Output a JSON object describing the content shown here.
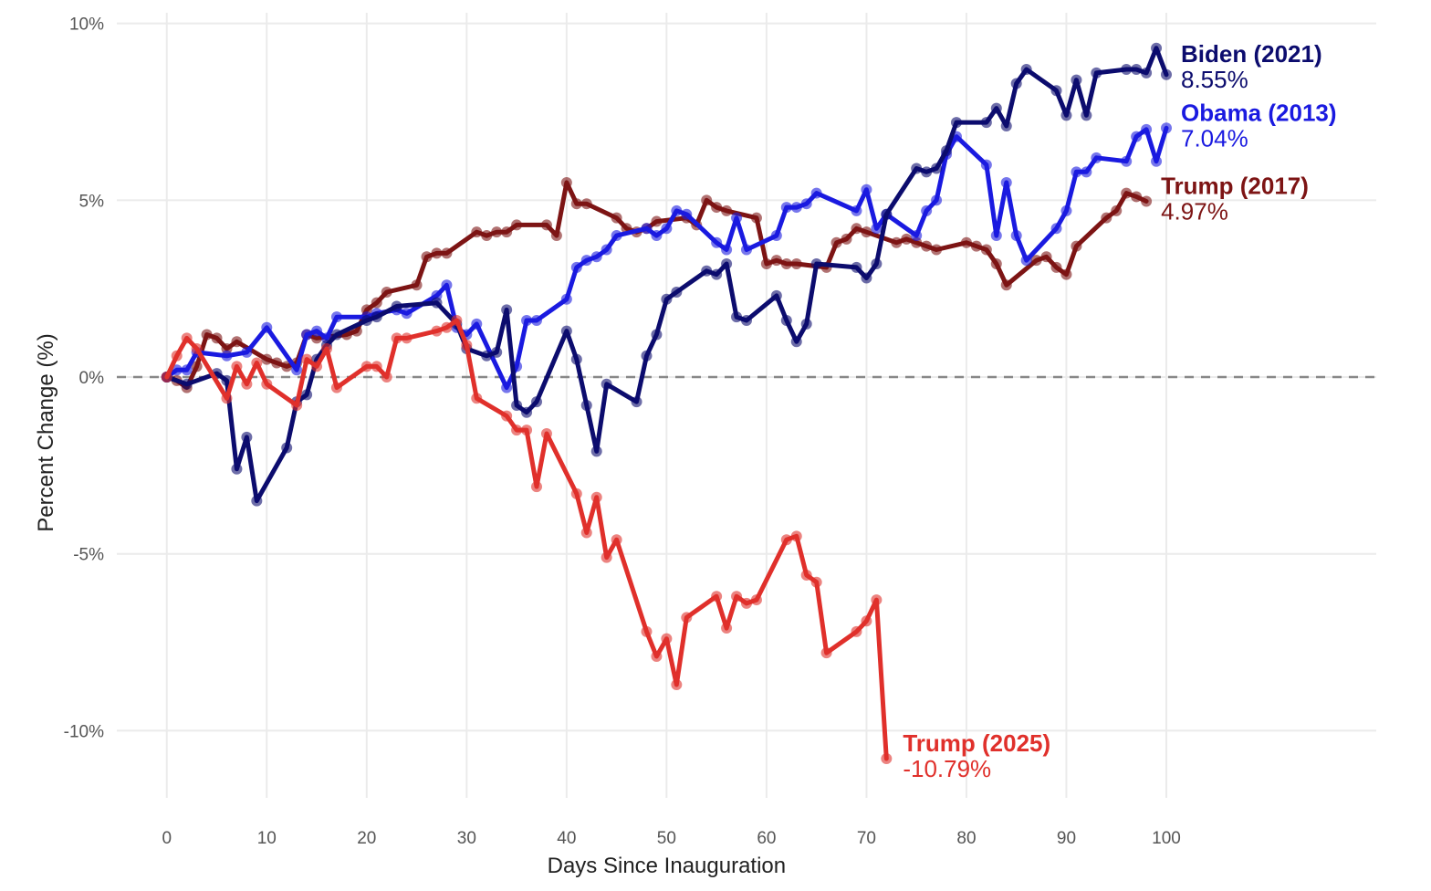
{
  "chart_data": {
    "type": "line",
    "title": "",
    "xlabel": "Days Since Inauguration",
    "ylabel": "Percent Change (%)",
    "xlim": [
      -5,
      121
    ],
    "ylim": [
      -11.9,
      10.3
    ],
    "x_ticks": [
      0,
      10,
      20,
      30,
      40,
      50,
      60,
      70,
      80,
      90,
      100
    ],
    "x_tick_labels": [
      "0",
      "10",
      "20",
      "30",
      "40",
      "50",
      "60",
      "70",
      "80",
      "90",
      "100"
    ],
    "y_ticks": [
      -10,
      -5,
      0,
      5,
      10
    ],
    "y_tick_labels": [
      "-10%",
      "-5%",
      "0%",
      "5%",
      "10%"
    ],
    "grid": true,
    "reference_line": {
      "y": 0,
      "style": "dashed"
    },
    "legend": "direct-labels-at-line-ends",
    "series": [
      {
        "name": "Biden (2021)",
        "end_label": "8.55%",
        "color": "#0c0c6e",
        "x": [
          0,
          2,
          5,
          6,
          7,
          8,
          9,
          12,
          13,
          14,
          15,
          16,
          17,
          20,
          21,
          23,
          27,
          29,
          30,
          32,
          33,
          34,
          35,
          36,
          37,
          40,
          41,
          42,
          43,
          44,
          47,
          48,
          49,
          50,
          51,
          54,
          55,
          56,
          57,
          58,
          61,
          62,
          63,
          64,
          65,
          69,
          70,
          71,
          72,
          75,
          76,
          77,
          78,
          79,
          82,
          83,
          84,
          85,
          86,
          89,
          90,
          91,
          92,
          93,
          96,
          97,
          98,
          99,
          100
        ],
        "values": [
          0.0,
          -0.2,
          0.1,
          -0.1,
          -2.6,
          -1.7,
          -3.5,
          -2.0,
          -0.7,
          -0.5,
          0.5,
          0.9,
          1.2,
          1.6,
          1.7,
          2.0,
          2.1,
          1.5,
          0.8,
          0.6,
          0.7,
          1.9,
          -0.8,
          -1.0,
          -0.7,
          1.3,
          0.5,
          -0.8,
          -2.1,
          -0.2,
          -0.7,
          0.6,
          1.2,
          2.2,
          2.4,
          3.0,
          2.9,
          3.2,
          1.7,
          1.6,
          2.3,
          1.6,
          1.0,
          1.5,
          3.2,
          3.1,
          2.8,
          3.2,
          4.6,
          5.9,
          5.8,
          5.9,
          6.4,
          7.2,
          7.2,
          7.6,
          7.1,
          8.3,
          8.7,
          8.1,
          7.4,
          8.4,
          7.4,
          8.6,
          8.7,
          8.7,
          8.6,
          9.3,
          8.55
        ]
      },
      {
        "name": "Obama (2013)",
        "end_label": "7.04%",
        "color": "#1a1ae0",
        "x": [
          0,
          1,
          2,
          3,
          6,
          8,
          10,
          13,
          14,
          15,
          16,
          17,
          20,
          21,
          23,
          24,
          27,
          28,
          29,
          30,
          31,
          34,
          35,
          36,
          37,
          40,
          41,
          42,
          43,
          44,
          45,
          48,
          49,
          50,
          51,
          52,
          55,
          56,
          57,
          58,
          61,
          62,
          63,
          64,
          65,
          69,
          70,
          71,
          72,
          75,
          76,
          77,
          78,
          79,
          82,
          83,
          84,
          85,
          86,
          89,
          90,
          91,
          92,
          93,
          96,
          97,
          98,
          99,
          100
        ],
        "values": [
          0.0,
          0.2,
          0.2,
          0.7,
          0.6,
          0.7,
          1.4,
          0.2,
          1.2,
          1.3,
          1.1,
          1.7,
          1.7,
          1.8,
          1.9,
          1.8,
          2.3,
          2.6,
          1.4,
          1.2,
          1.5,
          -0.3,
          0.3,
          1.6,
          1.6,
          2.2,
          3.1,
          3.3,
          3.4,
          3.6,
          4.0,
          4.2,
          4.0,
          4.2,
          4.7,
          4.6,
          3.8,
          3.6,
          4.5,
          3.6,
          4.0,
          4.8,
          4.8,
          4.9,
          5.2,
          4.7,
          5.3,
          4.2,
          4.6,
          4.0,
          4.7,
          5.0,
          6.3,
          6.8,
          6.0,
          4.0,
          5.5,
          4.0,
          3.3,
          4.2,
          4.7,
          5.8,
          5.8,
          6.2,
          6.1,
          6.8,
          7.0,
          6.1,
          7.04
        ]
      },
      {
        "name": "Trump (2017)",
        "end_label": "4.97%",
        "color": "#7d1414",
        "x": [
          0,
          1,
          2,
          3,
          4,
          5,
          6,
          7,
          10,
          11,
          12,
          13,
          14,
          15,
          18,
          19,
          20,
          21,
          22,
          25,
          26,
          27,
          28,
          31,
          32,
          33,
          34,
          35,
          38,
          39,
          40,
          41,
          42,
          45,
          46,
          47,
          48,
          49,
          52,
          53,
          54,
          55,
          56,
          59,
          60,
          61,
          62,
          63,
          66,
          67,
          68,
          69,
          70,
          73,
          74,
          75,
          76,
          77,
          80,
          81,
          82,
          83,
          84,
          87,
          88,
          89,
          90,
          91,
          94,
          95,
          96,
          97,
          98
        ],
        "values": [
          0.0,
          -0.1,
          -0.3,
          0.3,
          1.2,
          1.1,
          0.8,
          1.0,
          0.5,
          0.4,
          0.3,
          0.4,
          1.2,
          1.1,
          1.2,
          1.3,
          1.9,
          2.1,
          2.4,
          2.6,
          3.4,
          3.5,
          3.5,
          4.1,
          4.0,
          4.1,
          4.1,
          4.3,
          4.3,
          4.0,
          5.5,
          4.9,
          4.9,
          4.5,
          4.2,
          4.1,
          4.2,
          4.4,
          4.5,
          4.3,
          5.0,
          4.8,
          4.7,
          4.5,
          3.2,
          3.3,
          3.2,
          3.2,
          3.1,
          3.8,
          3.9,
          4.2,
          4.1,
          3.8,
          3.9,
          3.8,
          3.7,
          3.6,
          3.8,
          3.7,
          3.6,
          3.2,
          2.6,
          3.3,
          3.4,
          3.1,
          2.9,
          3.7,
          4.5,
          4.7,
          5.2,
          5.1,
          4.97
        ]
      },
      {
        "name": "Trump (2025)",
        "end_label": "-10.79%",
        "color": "#e0302b",
        "x": [
          0,
          1,
          2,
          3,
          6,
          7,
          8,
          9,
          10,
          13,
          14,
          15,
          16,
          17,
          20,
          21,
          22,
          23,
          24,
          27,
          28,
          29,
          30,
          31,
          34,
          35,
          36,
          37,
          38,
          41,
          42,
          43,
          44,
          45,
          48,
          49,
          50,
          51,
          52,
          55,
          56,
          57,
          58,
          59,
          62,
          63,
          64,
          65,
          66,
          69,
          70,
          71,
          72
        ],
        "values": [
          0.0,
          0.6,
          1.1,
          0.8,
          -0.6,
          0.3,
          -0.2,
          0.4,
          -0.2,
          -0.8,
          0.5,
          0.3,
          0.8,
          -0.3,
          0.3,
          0.3,
          0.0,
          1.1,
          1.1,
          1.3,
          1.4,
          1.6,
          0.9,
          -0.6,
          -1.1,
          -1.5,
          -1.5,
          -3.1,
          -1.6,
          -3.3,
          -4.4,
          -3.4,
          -5.1,
          -4.6,
          -7.2,
          -7.9,
          -7.4,
          -8.7,
          -6.8,
          -6.2,
          -7.1,
          -6.2,
          -6.4,
          -6.3,
          -4.6,
          -4.5,
          -5.6,
          -5.8,
          -7.8,
          -7.2,
          -6.9,
          -6.3,
          -10.79
        ]
      }
    ]
  }
}
